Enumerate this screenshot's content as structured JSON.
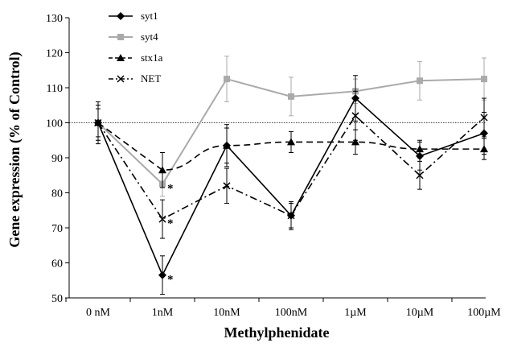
{
  "chart_data": {
    "type": "line",
    "title": "",
    "xlabel": "Methylphenidate",
    "ylabel": "Gene expression (% of Control)",
    "categories": [
      "0 nM",
      "1nM",
      "10nM",
      "100nM",
      "1µM",
      "10µM",
      "100µM"
    ],
    "ylim": [
      50,
      130
    ],
    "yticks": [
      50,
      60,
      70,
      80,
      90,
      100,
      110,
      120,
      130
    ],
    "reference_line": 100,
    "grid": false,
    "legend_position": "top-left",
    "series": [
      {
        "name": "syt1",
        "color": "#000000",
        "line_style": "solid",
        "marker": "diamond",
        "values": [
          100,
          56.5,
          93.5,
          73.5,
          107,
          90.5,
          97
        ],
        "errors": [
          5,
          5.5,
          6,
          3.5,
          6.5,
          4,
          6
        ],
        "significance": [
          "",
          "*",
          "",
          "",
          "",
          "",
          ""
        ]
      },
      {
        "name": "syt4",
        "color": "#aaaaaa",
        "line_style": "solid",
        "marker": "square",
        "values": [
          100,
          82.5,
          112.5,
          107.5,
          109,
          112,
          112.5
        ],
        "errors": [
          5,
          3.5,
          6.5,
          5.5,
          3.5,
          5.5,
          6
        ],
        "significance": [
          "",
          "*",
          "",
          "",
          "",
          "",
          ""
        ]
      },
      {
        "name": "stx1a",
        "color": "#000000",
        "line_style": "dashed",
        "marker": "triangle",
        "values": [
          100,
          86.5,
          93.5,
          94.5,
          94.5,
          92.5,
          92.5
        ],
        "errors": [
          4,
          5,
          5,
          3,
          3.5,
          2.5,
          3
        ],
        "significance": [
          "",
          "",
          "",
          "",
          "",
          "",
          ""
        ]
      },
      {
        "name": "NET",
        "color": "#000000",
        "line_style": "dashdot",
        "marker": "x",
        "values": [
          100,
          72.5,
          82,
          73.5,
          102,
          85,
          101.5
        ],
        "errors": [
          6,
          5.5,
          5,
          4,
          7,
          4,
          5.5
        ],
        "significance": [
          "",
          "*",
          "",
          "",
          "",
          "",
          ""
        ]
      }
    ]
  }
}
